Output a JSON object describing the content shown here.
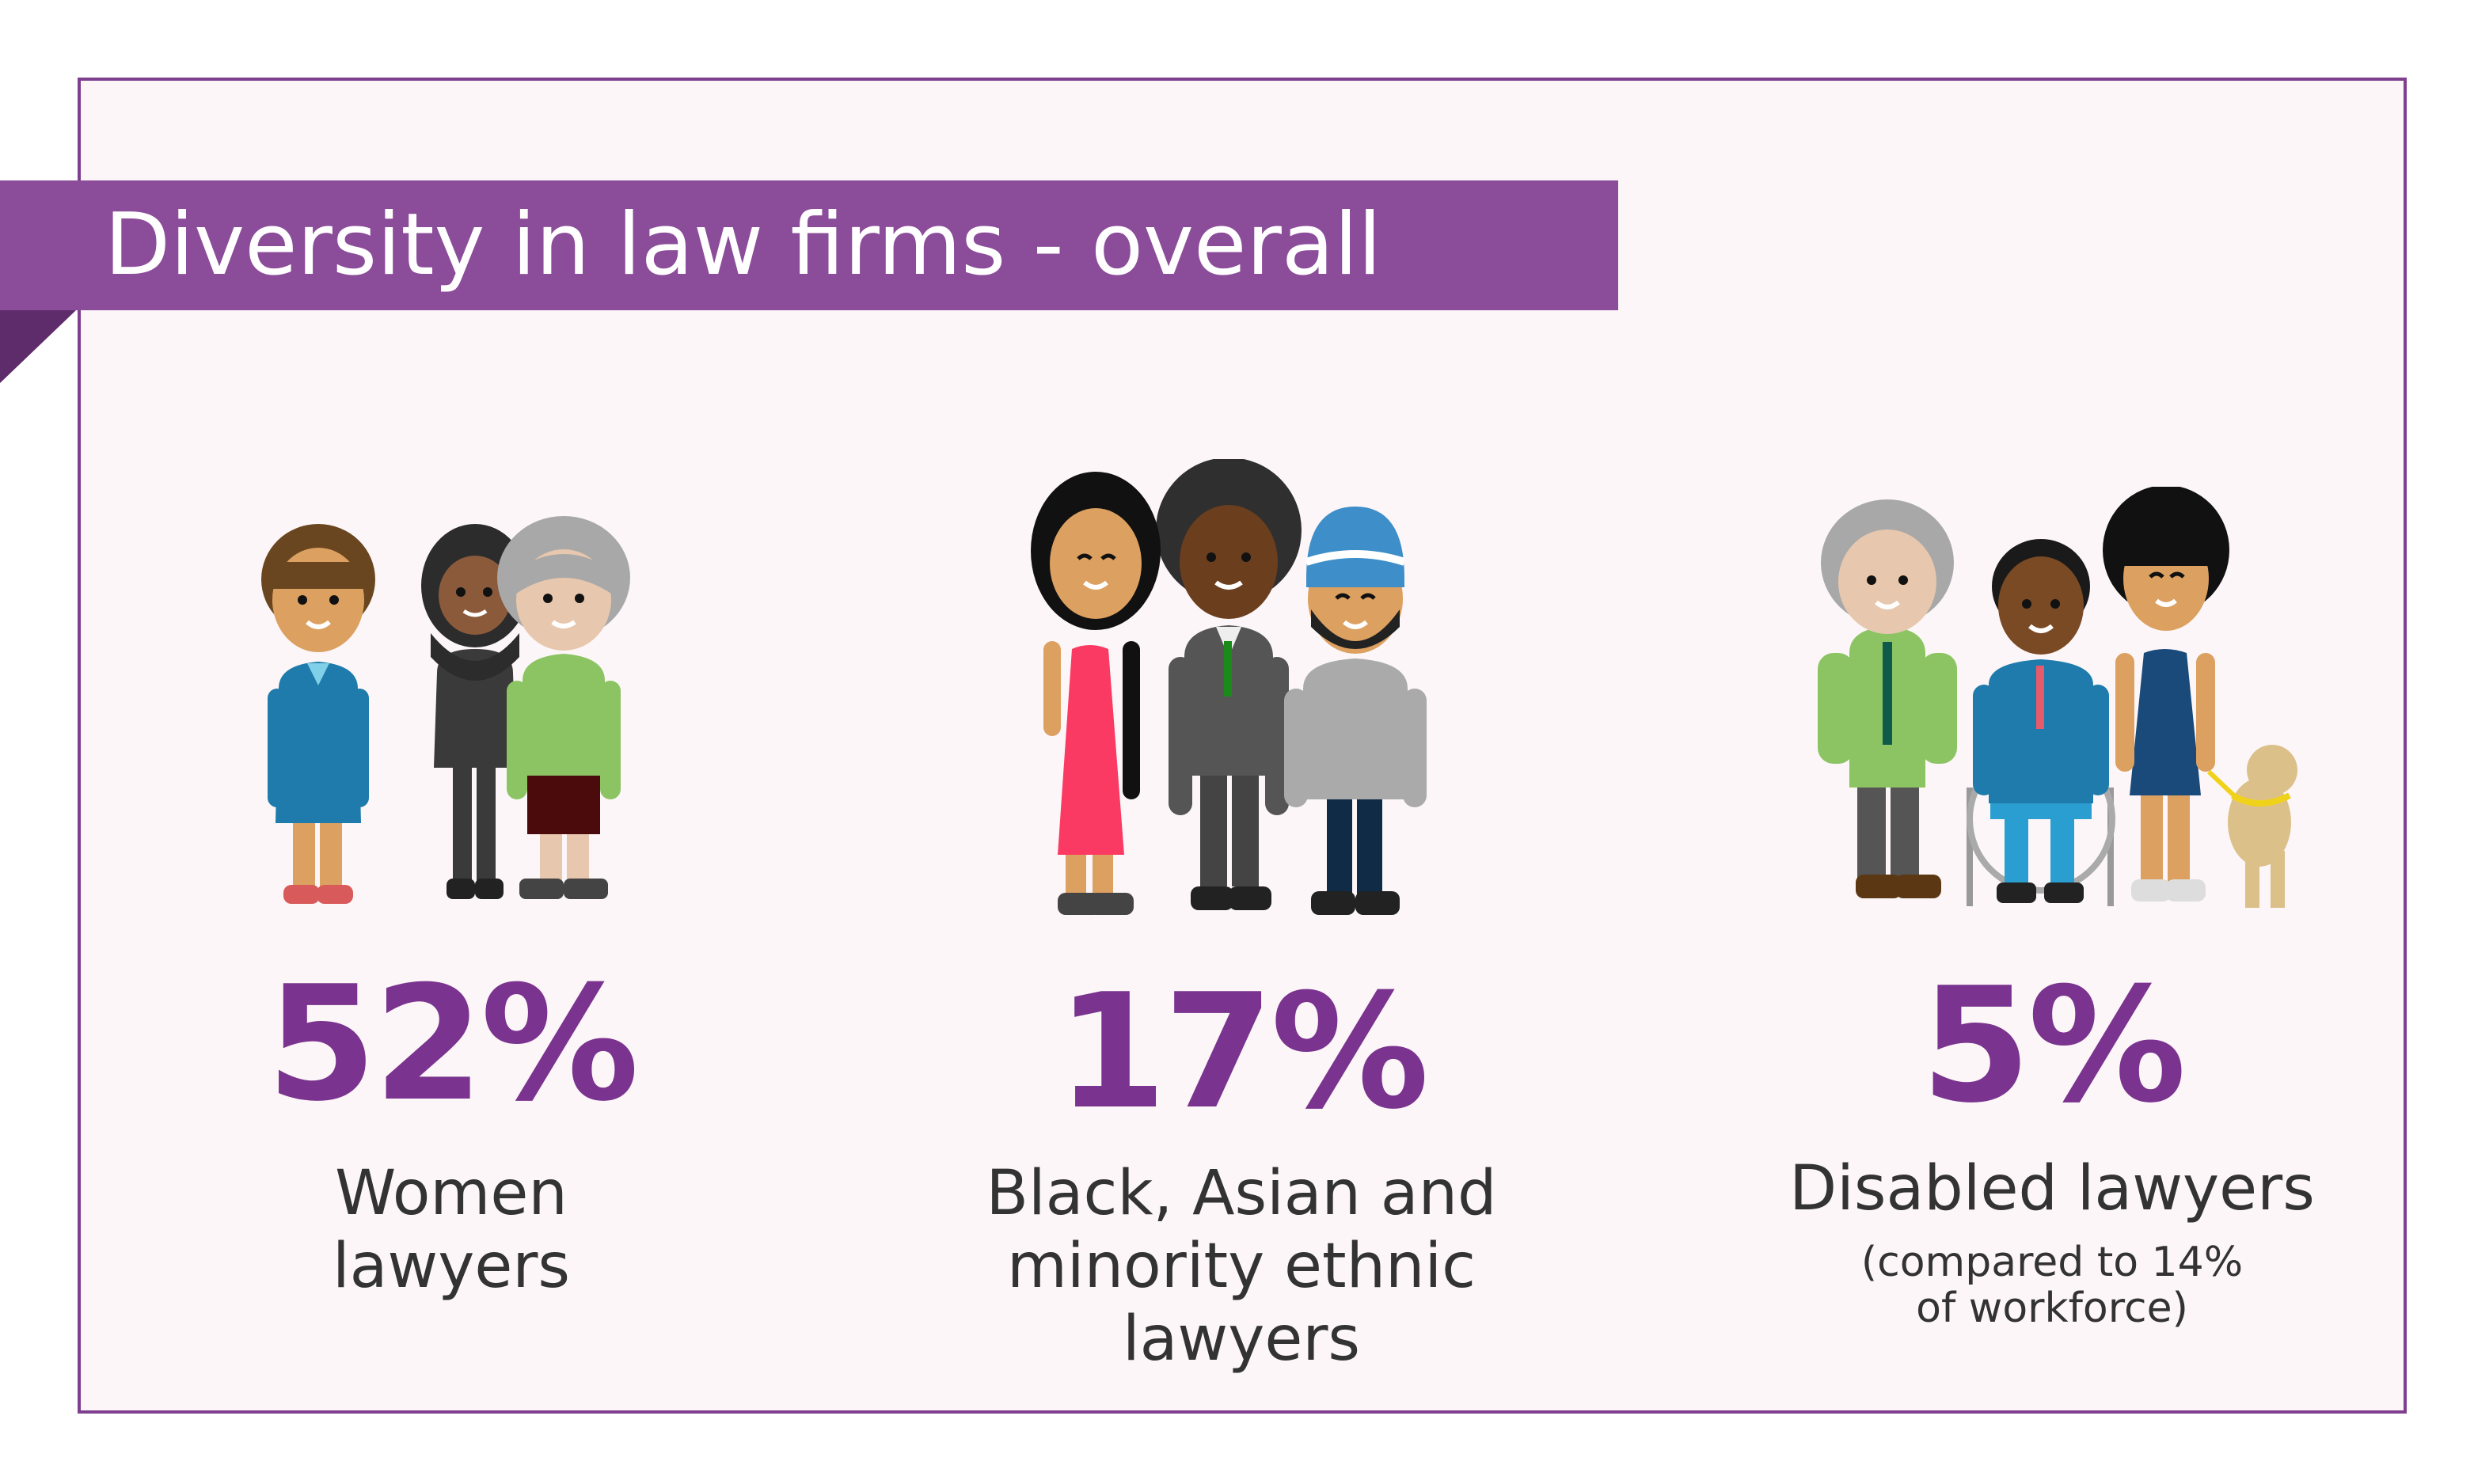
{
  "title": "Diversity in law firms - overall",
  "colors": {
    "accent": "#7a338e",
    "banner": "#8b4c99",
    "card_background": "#fcf6f8",
    "border": "#7e3f8f",
    "text": "#333333"
  },
  "stats": [
    {
      "value": "52%",
      "label_lines": [
        "Women",
        "lawyers"
      ],
      "illustration": "three-women-illustration"
    },
    {
      "value": "17%",
      "label_lines": [
        "Black, Asian and",
        "minority ethnic",
        "lawyers"
      ],
      "illustration": "three-minority-ethnic-people-illustration"
    },
    {
      "value": "5%",
      "label_lines": [
        "Disabled lawyers"
      ],
      "note_lines": [
        "(compared to 14%",
        "of workforce)"
      ],
      "illustration": "three-disabled-people-illustration"
    }
  ]
}
